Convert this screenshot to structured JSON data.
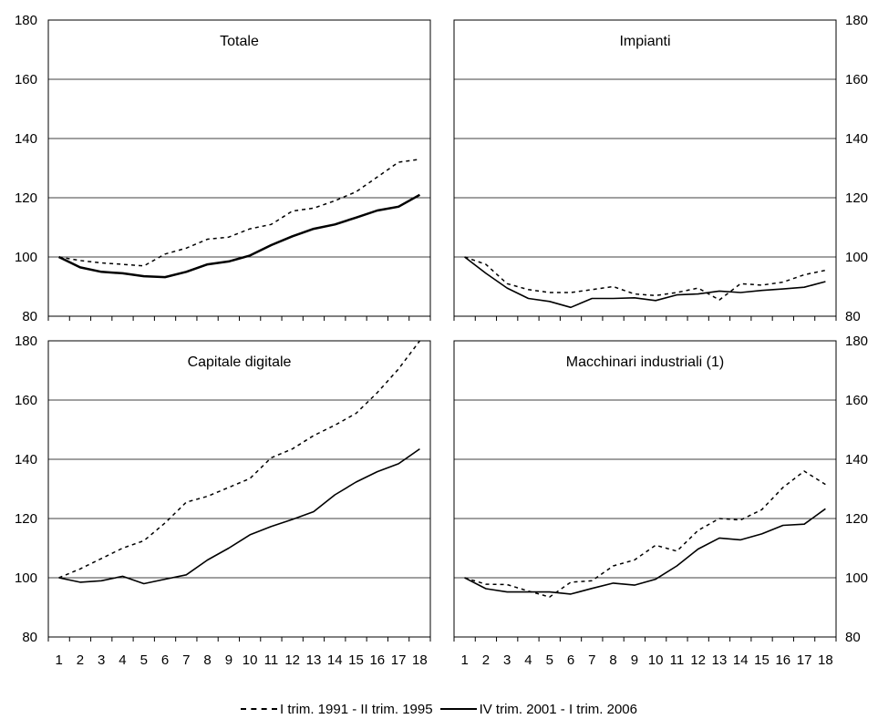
{
  "chart_data": [
    {
      "type": "line",
      "title": "Totale",
      "x": [
        1,
        2,
        3,
        4,
        5,
        6,
        7,
        8,
        9,
        10,
        11,
        12,
        13,
        14,
        15,
        16,
        17,
        18
      ],
      "ylim": [
        80,
        180
      ],
      "yticks": [
        80,
        100,
        120,
        140,
        160,
        180
      ],
      "y_axis_side": "left",
      "grid": true,
      "series": [
        {
          "name": "I trim. 1991 - II trim. 1995",
          "style": "dashed",
          "values": [
            100,
            98.8,
            98,
            97.5,
            97,
            101,
            103,
            106,
            106.7,
            109.5,
            111,
            115.5,
            116.5,
            119,
            122,
            127,
            132,
            133
          ]
        },
        {
          "name": "IV trim. 2001 - I trim. 2006",
          "style": "solid-bold",
          "values": [
            100,
            96.5,
            95,
            94.5,
            93.5,
            93.2,
            95,
            97.5,
            98.5,
            100.5,
            104,
            107,
            109.5,
            111,
            113.3,
            115.7,
            117,
            121
          ]
        }
      ]
    },
    {
      "type": "line",
      "title": "Impianti",
      "x": [
        1,
        2,
        3,
        4,
        5,
        6,
        7,
        8,
        9,
        10,
        11,
        12,
        13,
        14,
        15,
        16,
        17,
        18
      ],
      "ylim": [
        80,
        180
      ],
      "yticks": [
        80,
        100,
        120,
        140,
        160,
        180
      ],
      "y_axis_side": "right",
      "grid": true,
      "series": [
        {
          "name": "I trim. 1991 - II trim. 1995",
          "style": "dashed",
          "values": [
            100,
            97.5,
            91,
            89,
            88,
            88,
            89,
            90,
            87.5,
            87,
            88,
            89.5,
            85.5,
            91,
            90.5,
            91.5,
            94,
            95.5
          ]
        },
        {
          "name": "IV trim. 2001 - I trim. 2006",
          "style": "solid",
          "values": [
            100,
            94.5,
            89.5,
            86,
            85,
            83,
            86,
            86,
            86.2,
            85.3,
            87.2,
            87.5,
            88.5,
            88,
            88.7,
            89.2,
            89.8,
            91.7
          ]
        }
      ]
    },
    {
      "type": "line",
      "title": "Capitale digitale",
      "x": [
        1,
        2,
        3,
        4,
        5,
        6,
        7,
        8,
        9,
        10,
        11,
        12,
        13,
        14,
        15,
        16,
        17,
        18
      ],
      "ylim": [
        80,
        180
      ],
      "yticks": [
        80,
        100,
        120,
        140,
        160,
        180
      ],
      "y_axis_side": "left",
      "grid": true,
      "series": [
        {
          "name": "I trim. 1991 - II trim. 1995",
          "style": "dashed",
          "values": [
            100,
            103,
            106.5,
            110,
            112.5,
            118.5,
            125.5,
            127.5,
            130.5,
            133.5,
            140.5,
            143.5,
            148,
            151.5,
            155.5,
            162.5,
            170.5,
            180
          ]
        },
        {
          "name": "IV trim. 2001 - I trim. 2006",
          "style": "solid",
          "values": [
            100,
            98.5,
            99,
            100.5,
            98,
            99.5,
            101,
            106,
            110,
            114.5,
            117.3,
            119.7,
            122.3,
            128,
            132.3,
            135.8,
            138.5,
            143.5
          ]
        }
      ]
    },
    {
      "type": "line",
      "title": "Macchinari industriali (1)",
      "x": [
        1,
        2,
        3,
        4,
        5,
        6,
        7,
        8,
        9,
        10,
        11,
        12,
        13,
        14,
        15,
        16,
        17,
        18
      ],
      "ylim": [
        80,
        180
      ],
      "yticks": [
        80,
        100,
        120,
        140,
        160,
        180
      ],
      "y_axis_side": "right",
      "grid": true,
      "series": [
        {
          "name": "I trim. 1991 - II trim. 1995",
          "style": "dashed",
          "values": [
            100,
            97.8,
            97.7,
            95.5,
            93.5,
            98.5,
            99,
            104,
            106,
            111,
            109,
            116,
            120,
            119.5,
            123,
            130.5,
            136,
            131.5
          ]
        },
        {
          "name": "IV trim. 2001 - I trim. 2006",
          "style": "solid",
          "values": [
            100,
            96.3,
            95.2,
            95.2,
            95.2,
            94.5,
            96.4,
            98.2,
            97.5,
            99.5,
            104,
            109.7,
            113.4,
            112.8,
            114.8,
            117.7,
            118.1,
            123.3
          ]
        }
      ]
    }
  ],
  "legend": {
    "placement": "bottom-center",
    "items": [
      {
        "label": "I trim. 1991 - II trim. 1995",
        "style": "dashed"
      },
      {
        "label": "IV trim. 2001 - I trim. 2006",
        "style": "solid"
      }
    ]
  }
}
